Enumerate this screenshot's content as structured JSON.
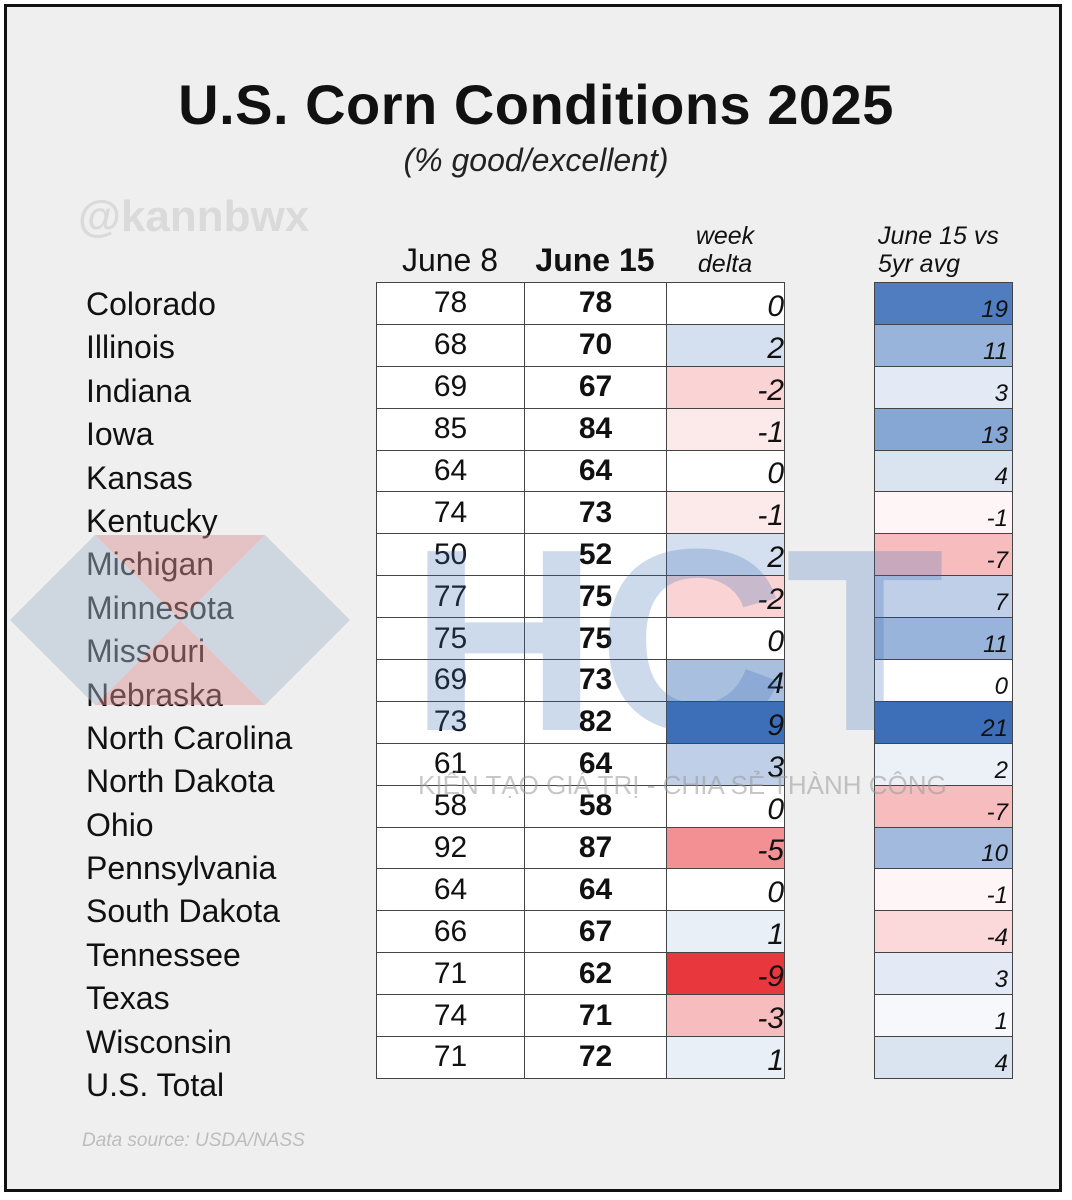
{
  "title": "U.S. Corn Conditions 2025",
  "subtitle": "(% good/excellent)",
  "handle": "@kannbwx",
  "source": "Data source: USDA/NASS",
  "watermark": {
    "letters": "HCT",
    "slogan": "KIẾN TẠO GIÁ TRỊ - CHIA SẺ THÀNH CÔNG"
  },
  "colors": {
    "positive": "#3c6fb8",
    "negative": "#e8373d",
    "neutral": "#ffffff"
  },
  "chart_data": {
    "type": "table",
    "title": "U.S. Corn Conditions 2025",
    "subtitle": "(% good/excellent)",
    "columns": {
      "state": "",
      "june8": "June 8",
      "june15": "June 15",
      "delta_line1": "week",
      "delta_line2": "delta",
      "vs_line1": "June 15 vs",
      "vs_line2": "5yr avg"
    },
    "rows": [
      {
        "state": "Colorado",
        "june8": "78",
        "june15": "78",
        "delta": "0",
        "vs_avg": "19"
      },
      {
        "state": "Illinois",
        "june8": "68",
        "june15": "70",
        "delta": "2",
        "vs_avg": "11"
      },
      {
        "state": "Indiana",
        "june8": "69",
        "june15": "67",
        "delta": "-2",
        "vs_avg": "3"
      },
      {
        "state": "Iowa",
        "june8": "85",
        "june15": "84",
        "delta": "-1",
        "vs_avg": "13"
      },
      {
        "state": "Kansas",
        "june8": "64",
        "june15": "64",
        "delta": "0",
        "vs_avg": "4"
      },
      {
        "state": "Kentucky",
        "june8": "74",
        "june15": "73",
        "delta": "-1",
        "vs_avg": "-1"
      },
      {
        "state": "Michigan",
        "june8": "50",
        "june15": "52",
        "delta": "2",
        "vs_avg": "-7"
      },
      {
        "state": "Minnesota",
        "june8": "77",
        "june15": "75",
        "delta": "-2",
        "vs_avg": "7"
      },
      {
        "state": "Missouri",
        "june8": "75",
        "june15": "75",
        "delta": "0",
        "vs_avg": "11"
      },
      {
        "state": "Nebraska",
        "june8": "69",
        "june15": "73",
        "delta": "4",
        "vs_avg": "0"
      },
      {
        "state": "North Carolina",
        "june8": "73",
        "june15": "82",
        "delta": "9",
        "vs_avg": "21"
      },
      {
        "state": "North Dakota",
        "june8": "61",
        "june15": "64",
        "delta": "3",
        "vs_avg": "2"
      },
      {
        "state": "Ohio",
        "june8": "58",
        "june15": "58",
        "delta": "0",
        "vs_avg": "-7"
      },
      {
        "state": "Pennsylvania",
        "june8": "92",
        "june15": "87",
        "delta": "-5",
        "vs_avg": "10"
      },
      {
        "state": "South Dakota",
        "june8": "64",
        "june15": "64",
        "delta": "0",
        "vs_avg": "-1"
      },
      {
        "state": "Tennessee",
        "june8": "66",
        "june15": "67",
        "delta": "1",
        "vs_avg": "-4"
      },
      {
        "state": "Texas",
        "june8": "71",
        "june15": "62",
        "delta": "-9",
        "vs_avg": "3"
      },
      {
        "state": "Wisconsin",
        "june8": "74",
        "june15": "71",
        "delta": "-3",
        "vs_avg": "1"
      },
      {
        "state": "U.S. Total",
        "june8": "71",
        "june15": "72",
        "delta": "1",
        "vs_avg": "4"
      }
    ]
  }
}
